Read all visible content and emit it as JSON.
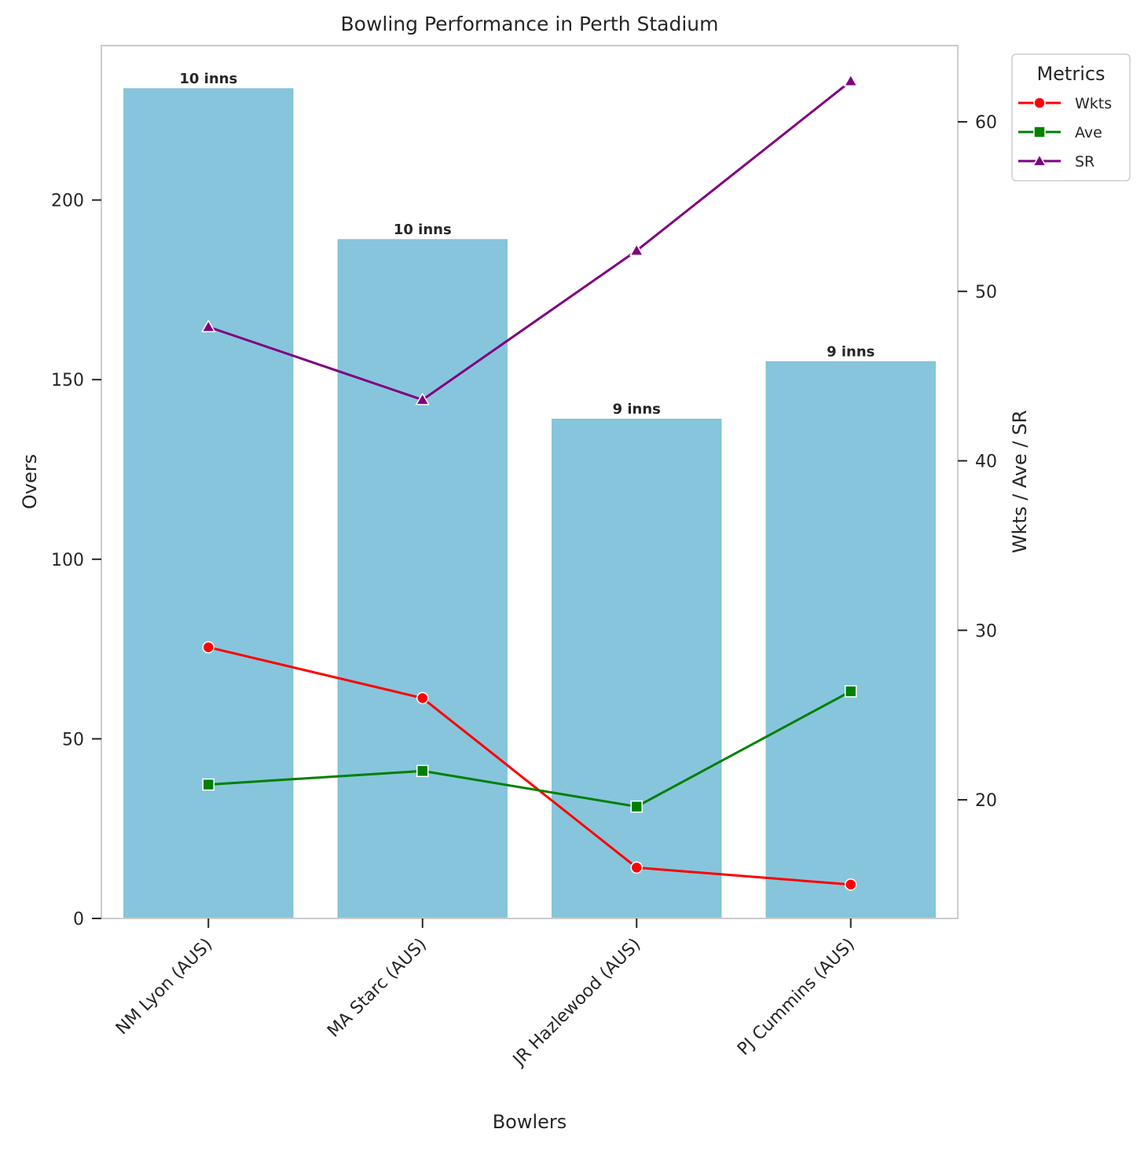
{
  "chart_data": {
    "type": "bar",
    "title": "Bowling Performance in Perth Stadium",
    "xlabel": "Bowlers",
    "ylabel": "Overs",
    "y2label": "Wkts / Ave / SR",
    "categories": [
      "NM Lyon (AUS)",
      "MA Starc (AUS)",
      "JR Hazlewood (AUS)",
      "PJ Cummins (AUS)"
    ],
    "bars": {
      "values": [
        231,
        189,
        139,
        155
      ],
      "labels": [
        "10 inns",
        "10 inns",
        "9 inns",
        "9 inns"
      ],
      "color": "#87c5dc"
    },
    "ylim": [
      0,
      243
    ],
    "yticks": [
      0,
      50,
      100,
      150,
      200
    ],
    "y2lim": [
      13,
      64.5
    ],
    "y2ticks": [
      20,
      30,
      40,
      50,
      60
    ],
    "series": [
      {
        "name": "Wkts",
        "values": [
          29,
          26,
          16,
          15
        ],
        "color": "#ff0000",
        "marker": "circle"
      },
      {
        "name": "Ave",
        "values": [
          20.9,
          21.7,
          19.6,
          26.4
        ],
        "color": "#008000",
        "marker": "square"
      },
      {
        "name": "SR",
        "values": [
          47.9,
          43.6,
          52.4,
          62.4
        ],
        "color": "#800080",
        "marker": "triangle"
      }
    ],
    "legend": {
      "title": "Metrics",
      "placement": "outside top-right"
    },
    "grid": false
  }
}
